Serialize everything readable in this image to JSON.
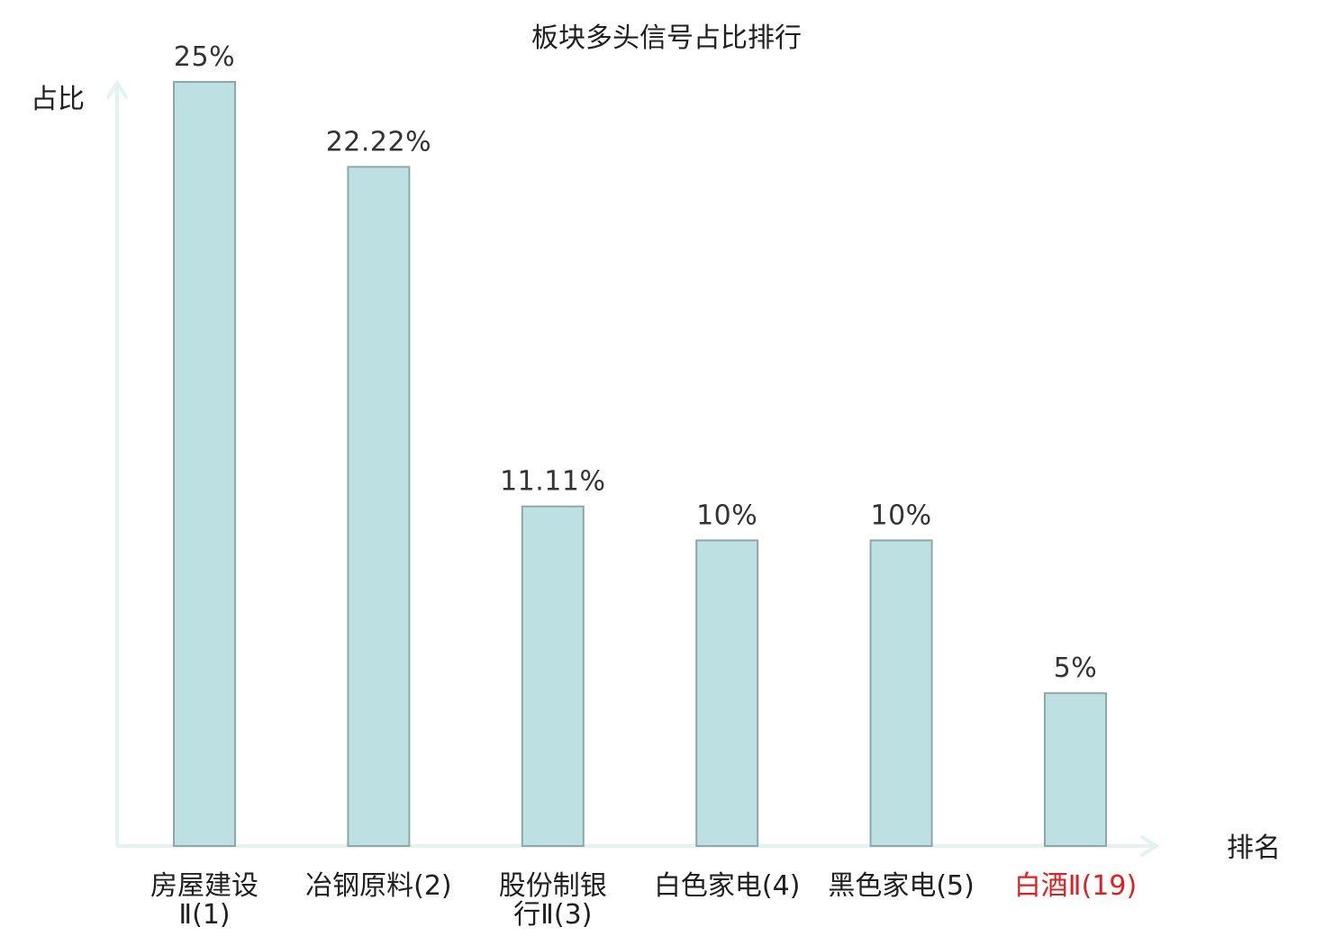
{
  "chart_data": {
    "type": "bar",
    "title": "板块多头信号占比排行",
    "xlabel": "排名",
    "ylabel": "占比",
    "categories": [
      [
        "房屋建设",
        "Ⅱ(1)"
      ],
      [
        "冶钢原料(2)"
      ],
      [
        "股份制银",
        "行Ⅱ(3)"
      ],
      [
        "白色家电(4)"
      ],
      [
        "黑色家电(5)"
      ],
      [
        "白酒Ⅱ(19)"
      ]
    ],
    "values": [
      25,
      22.22,
      11.11,
      10,
      10,
      5
    ],
    "value_labels": [
      "25%",
      "22.22%",
      "11.11%",
      "10%",
      "10%",
      "5%"
    ],
    "highlight_index": 5,
    "ylim": [
      0,
      25
    ],
    "grid": false,
    "colors": {
      "bar_fill": "#bde0e2",
      "bar_stroke": "#8fa7a9",
      "axis": "#e2f3f0",
      "text": "#1f1f1f",
      "value_text": "#333333",
      "highlight_text": "#e02020"
    }
  }
}
